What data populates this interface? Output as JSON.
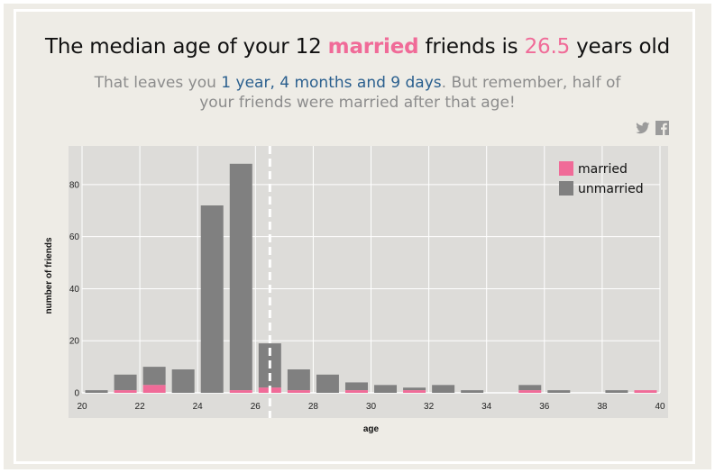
{
  "header": {
    "pre": "The median age of your",
    "count": "12",
    "married_word": "married",
    "mid": "friends is",
    "median": "26.5",
    "post": "years old"
  },
  "subtitle": {
    "pre": "That leaves you",
    "time_left": "1 year, 4 months and 9 days",
    "post": ". But remember, half of your friends were married after that age!"
  },
  "social": {
    "twitter_icon": "twitter-icon",
    "facebook_icon": "facebook-icon"
  },
  "colors": {
    "married": "#f06b98",
    "unmarried": "#808080",
    "plot_bg": "#dddcd9",
    "median_line": "#ffffff"
  },
  "chart_data": {
    "type": "bar",
    "stacked": true,
    "xlabel": "age",
    "ylabel": "number of friends",
    "xlim": [
      20,
      40
    ],
    "ylim": [
      0,
      90
    ],
    "xticks": [
      20,
      22,
      24,
      26,
      28,
      30,
      32,
      34,
      36,
      38,
      40
    ],
    "yticks": [
      0,
      20,
      40,
      60,
      80
    ],
    "median": 26.5,
    "legend_position": "top-right",
    "categories": [
      20,
      21,
      22,
      23,
      24,
      25,
      26,
      27,
      28,
      29,
      30,
      31,
      32,
      33,
      34,
      35,
      36,
      37,
      38,
      39
    ],
    "series": [
      {
        "name": "married",
        "values": [
          0,
          1,
          3,
          0,
          0,
          1,
          2,
          1,
          0,
          1,
          0,
          1,
          0,
          0,
          0,
          1,
          0,
          0,
          0,
          1
        ]
      },
      {
        "name": "unmarried",
        "values": [
          1,
          6,
          7,
          9,
          72,
          87,
          17,
          8,
          7,
          3,
          3,
          1,
          3,
          1,
          0,
          2,
          1,
          0,
          1,
          0
        ]
      }
    ]
  }
}
